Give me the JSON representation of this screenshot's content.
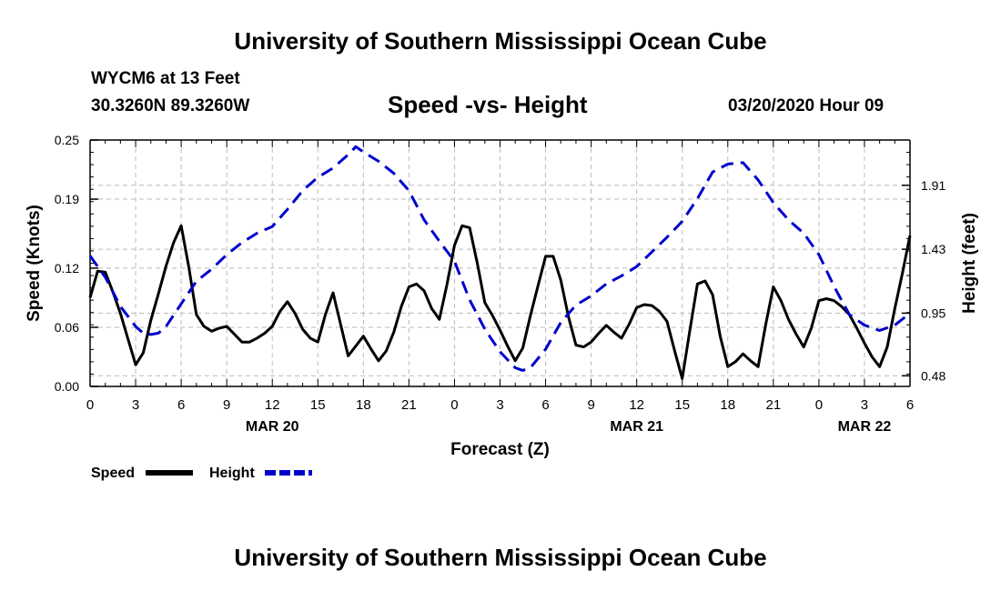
{
  "header_title": "University of Southern Mississippi Ocean Cube",
  "footer_title": "University of Southern Mississippi Ocean Cube",
  "station": {
    "name": "WYCM6 at 13 Feet",
    "coords": "30.3260N 89.3260W",
    "run_time": "03/20/2020 Hour 09"
  },
  "colors": {
    "speed": "#000000",
    "height": "#0000cc",
    "grid": "#bbbbbb"
  },
  "chart_data": {
    "type": "line",
    "title": "Speed -vs- Height",
    "xlabel": "Forecast (Z)",
    "ylabel": "Speed (Knots)",
    "y2label": "Height (feet)",
    "xlim": [
      0,
      54
    ],
    "ylim": [
      0.0,
      0.25
    ],
    "y2lim": [
      0.4,
      2.25
    ],
    "x_ticks": [
      0,
      3,
      6,
      9,
      12,
      15,
      18,
      21,
      24,
      27,
      30,
      33,
      36,
      39,
      42,
      45,
      48,
      51,
      54
    ],
    "x_tick_labels": [
      "0",
      "3",
      "6",
      "9",
      "12",
      "15",
      "18",
      "21",
      "0",
      "3",
      "6",
      "9",
      "12",
      "15",
      "18",
      "21",
      "0",
      "3",
      "6"
    ],
    "date_labels": [
      {
        "text": "MAR 20",
        "x": 12
      },
      {
        "text": "MAR 21",
        "x": 36
      },
      {
        "text": "MAR 22",
        "x": 51
      }
    ],
    "y_ticks": [
      0.0,
      0.06,
      0.12,
      0.19,
      0.25
    ],
    "y_tick_labels": [
      "0.00",
      "0.06",
      "0.12",
      "0.19",
      "0.25"
    ],
    "y2_ticks": [
      0.48,
      0.95,
      1.43,
      1.91
    ],
    "y2_tick_labels": [
      "0.48",
      "0.95",
      "1.43",
      "1.91"
    ],
    "grid": true,
    "legend": [
      {
        "name": "Speed",
        "series": "speed"
      },
      {
        "name": "Height",
        "series": "height"
      }
    ],
    "legend_position": "bottom-left",
    "series": [
      {
        "name": "Speed",
        "axis": "left",
        "style": "solid",
        "x": [
          0,
          0.5,
          1,
          1.5,
          2,
          2.5,
          3,
          3.5,
          4,
          4.5,
          5,
          5.5,
          6,
          6.5,
          7,
          7.5,
          8,
          8.5,
          9,
          9.5,
          10,
          10.5,
          11,
          11.5,
          12,
          12.5,
          13,
          13.5,
          14,
          14.5,
          15,
          15.5,
          16,
          16.5,
          17,
          17.5,
          18,
          18.5,
          19,
          19.5,
          20,
          20.5,
          21,
          21.5,
          22,
          22.5,
          23,
          23.5,
          24,
          24.5,
          25,
          25.5,
          26,
          26.5,
          27,
          27.5,
          28,
          28.5,
          29,
          29.5,
          30,
          30.5,
          31,
          31.5,
          32,
          32.5,
          33,
          33.5,
          34,
          34.5,
          35,
          35.5,
          36,
          36.5,
          37,
          37.5,
          38,
          38.5,
          39,
          39.5,
          40,
          40.5,
          41,
          41.5,
          42,
          42.5,
          43,
          43.5,
          44,
          44.5,
          45,
          45.5,
          46,
          46.5,
          47,
          47.5,
          48,
          48.5,
          49,
          49.5,
          50,
          50.5,
          51,
          51.5,
          52,
          52.5,
          53,
          53.5,
          54
        ],
        "values": [
          0.09,
          0.117,
          0.116,
          0.096,
          0.074,
          0.048,
          0.022,
          0.034,
          0.067,
          0.094,
          0.122,
          0.146,
          0.163,
          0.121,
          0.073,
          0.061,
          0.056,
          0.059,
          0.061,
          0.053,
          0.045,
          0.045,
          0.049,
          0.054,
          0.061,
          0.076,
          0.086,
          0.074,
          0.058,
          0.049,
          0.045,
          0.073,
          0.095,
          0.063,
          0.031,
          0.041,
          0.051,
          0.038,
          0.026,
          0.036,
          0.055,
          0.081,
          0.101,
          0.104,
          0.097,
          0.079,
          0.068,
          0.103,
          0.143,
          0.163,
          0.161,
          0.125,
          0.085,
          0.072,
          0.057,
          0.041,
          0.026,
          0.039,
          0.072,
          0.102,
          0.132,
          0.132,
          0.108,
          0.071,
          0.042,
          0.04,
          0.045,
          0.054,
          0.062,
          0.055,
          0.049,
          0.063,
          0.08,
          0.083,
          0.082,
          0.076,
          0.066,
          0.036,
          0.008,
          0.057,
          0.104,
          0.107,
          0.093,
          0.051,
          0.02,
          0.025,
          0.033,
          0.026,
          0.02,
          0.063,
          0.101,
          0.087,
          0.068,
          0.053,
          0.04,
          0.059,
          0.087,
          0.089,
          0.087,
          0.081,
          0.073,
          0.059,
          0.044,
          0.03,
          0.02,
          0.04,
          0.079,
          0.115,
          0.153
        ]
      },
      {
        "name": "Height",
        "axis": "right",
        "style": "dashed",
        "x": [
          0,
          1,
          2,
          3,
          3.5,
          4,
          4.5,
          5,
          6,
          7,
          8,
          9,
          10,
          11,
          12,
          13,
          14,
          15,
          16,
          17,
          17.5,
          18,
          19,
          20,
          21,
          22,
          23,
          24,
          25,
          26,
          27,
          28,
          28.5,
          29,
          30,
          31,
          32,
          33,
          34,
          35,
          36,
          37,
          38,
          39,
          40,
          41,
          42,
          43,
          44,
          45,
          46,
          47,
          48,
          49,
          50,
          51,
          52,
          53,
          54
        ],
        "values": [
          1.38,
          1.22,
          1.0,
          0.85,
          0.8,
          0.79,
          0.8,
          0.85,
          1.02,
          1.19,
          1.28,
          1.39,
          1.48,
          1.55,
          1.6,
          1.73,
          1.87,
          1.97,
          2.04,
          2.14,
          2.2,
          2.16,
          2.09,
          2.0,
          1.87,
          1.65,
          1.49,
          1.34,
          1.05,
          0.83,
          0.66,
          0.54,
          0.52,
          0.54,
          0.68,
          0.88,
          1.01,
          1.08,
          1.17,
          1.23,
          1.3,
          1.41,
          1.52,
          1.64,
          1.81,
          2.01,
          2.07,
          2.08,
          1.95,
          1.78,
          1.65,
          1.55,
          1.39,
          1.15,
          0.94,
          0.86,
          0.82,
          0.86,
          0.95
        ]
      }
    ]
  }
}
